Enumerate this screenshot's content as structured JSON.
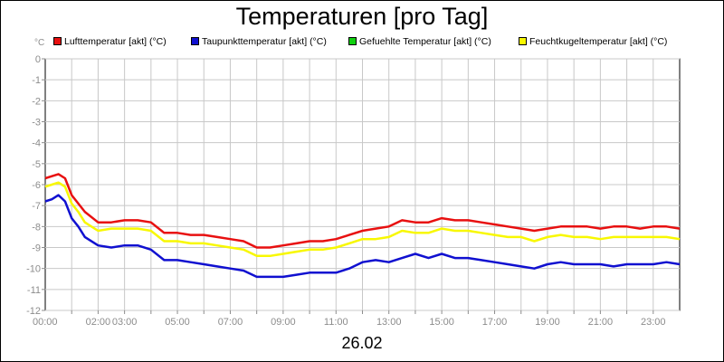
{
  "title": "Temperaturen [pro Tag]",
  "unit_label": "°C",
  "date_label": "26.02",
  "legend": [
    {
      "label": "Lufttemperatur [akt] (°C)",
      "color": "#e81010"
    },
    {
      "label": "Taupunkttemperatur [akt] (°C)",
      "color": "#1010d0"
    },
    {
      "label": "Gefuehlte Temperatur [akt] (°C)",
      "color": "#10d010"
    },
    {
      "label": "Feuchtkugeltemperatur [akt] (°C)",
      "color": "#f8f800"
    }
  ],
  "chart_data": {
    "type": "line",
    "title": "Temperaturen [pro Tag]",
    "xlabel": "26.02",
    "ylabel": "°C",
    "xlim": [
      0,
      24
    ],
    "ylim": [
      -12,
      0
    ],
    "y_ticks": [
      0,
      -1,
      -2,
      -3,
      -4,
      -5,
      -6,
      -7,
      -8,
      -9,
      -10,
      -11,
      -12
    ],
    "x_ticks": [
      {
        "t": 0,
        "label": "00:00"
      },
      {
        "t": 2,
        "label": "02:00"
      },
      {
        "t": 3,
        "label": "03:00"
      },
      {
        "t": 5,
        "label": "05:00"
      },
      {
        "t": 7,
        "label": "07:00"
      },
      {
        "t": 9,
        "label": "09:00"
      },
      {
        "t": 11,
        "label": "11:00"
      },
      {
        "t": 13,
        "label": "13:00"
      },
      {
        "t": 15,
        "label": "15:00"
      },
      {
        "t": 17,
        "label": "17:00"
      },
      {
        "t": 19,
        "label": "19:00"
      },
      {
        "t": 21,
        "label": "21:00"
      },
      {
        "t": 23,
        "label": "23:00"
      }
    ],
    "grid": true,
    "series": [
      {
        "name": "Lufttemperatur [akt] (°C)",
        "color": "#e81010",
        "x": [
          0,
          0.25,
          0.5,
          0.75,
          1.0,
          1.25,
          1.5,
          2.0,
          2.5,
          3.0,
          3.5,
          4.0,
          4.5,
          5.0,
          5.5,
          6.0,
          6.5,
          7.0,
          7.5,
          8.0,
          8.5,
          9.0,
          9.5,
          10.0,
          10.5,
          11.0,
          11.5,
          12.0,
          12.5,
          13.0,
          13.5,
          14.0,
          14.5,
          15.0,
          15.5,
          16.0,
          16.5,
          17.0,
          17.5,
          18.0,
          18.5,
          19.0,
          19.5,
          20.0,
          20.5,
          21.0,
          21.5,
          22.0,
          22.5,
          23.0,
          23.5,
          24.0
        ],
        "values": [
          -5.7,
          -5.6,
          -5.5,
          -5.7,
          -6.5,
          -6.9,
          -7.3,
          -7.8,
          -7.8,
          -7.7,
          -7.7,
          -7.8,
          -8.3,
          -8.3,
          -8.4,
          -8.4,
          -8.5,
          -8.6,
          -8.7,
          -9.0,
          -9.0,
          -8.9,
          -8.8,
          -8.7,
          -8.7,
          -8.6,
          -8.4,
          -8.2,
          -8.1,
          -8.0,
          -7.7,
          -7.8,
          -7.8,
          -7.6,
          -7.7,
          -7.7,
          -7.8,
          -7.9,
          -8.0,
          -8.1,
          -8.2,
          -8.1,
          -8.0,
          -8.0,
          -8.0,
          -8.1,
          -8.0,
          -8.0,
          -8.1,
          -8.0,
          -8.0,
          -8.1
        ]
      },
      {
        "name": "Taupunkttemperatur [akt] (°C)",
        "color": "#1010d0",
        "x": [
          0,
          0.25,
          0.5,
          0.75,
          1.0,
          1.25,
          1.5,
          2.0,
          2.5,
          3.0,
          3.5,
          4.0,
          4.5,
          5.0,
          5.5,
          6.0,
          6.5,
          7.0,
          7.5,
          8.0,
          8.5,
          9.0,
          9.5,
          10.0,
          10.5,
          11.0,
          11.5,
          12.0,
          12.5,
          13.0,
          13.5,
          14.0,
          14.5,
          15.0,
          15.5,
          16.0,
          16.5,
          17.0,
          17.5,
          18.0,
          18.5,
          19.0,
          19.5,
          20.0,
          20.5,
          21.0,
          21.5,
          22.0,
          22.5,
          23.0,
          23.5,
          24.0
        ],
        "values": [
          -6.8,
          -6.7,
          -6.5,
          -6.8,
          -7.6,
          -8.0,
          -8.5,
          -8.9,
          -9.0,
          -8.9,
          -8.9,
          -9.1,
          -9.6,
          -9.6,
          -9.7,
          -9.8,
          -9.9,
          -10.0,
          -10.1,
          -10.4,
          -10.4,
          -10.4,
          -10.3,
          -10.2,
          -10.2,
          -10.2,
          -10.0,
          -9.7,
          -9.6,
          -9.7,
          -9.5,
          -9.3,
          -9.5,
          -9.3,
          -9.5,
          -9.5,
          -9.6,
          -9.7,
          -9.8,
          -9.9,
          -10.0,
          -9.8,
          -9.7,
          -9.8,
          -9.8,
          -9.8,
          -9.9,
          -9.8,
          -9.8,
          -9.8,
          -9.7,
          -9.8
        ]
      },
      {
        "name": "Feuchtkugeltemperatur [akt] (°C)",
        "color": "#f8f800",
        "x": [
          0,
          0.25,
          0.5,
          0.75,
          1.0,
          1.25,
          1.5,
          2.0,
          2.5,
          3.0,
          3.5,
          4.0,
          4.5,
          5.0,
          5.5,
          6.0,
          6.5,
          7.0,
          7.5,
          8.0,
          8.5,
          9.0,
          9.5,
          10.0,
          10.5,
          11.0,
          11.5,
          12.0,
          12.5,
          13.0,
          13.5,
          14.0,
          14.5,
          15.0,
          15.5,
          16.0,
          16.5,
          17.0,
          17.5,
          18.0,
          18.5,
          19.0,
          19.5,
          20.0,
          20.5,
          21.0,
          21.5,
          22.0,
          22.5,
          23.0,
          23.5,
          24.0
        ],
        "values": [
          -6.1,
          -6.0,
          -5.9,
          -6.1,
          -6.9,
          -7.3,
          -7.8,
          -8.2,
          -8.1,
          -8.1,
          -8.1,
          -8.2,
          -8.7,
          -8.7,
          -8.8,
          -8.8,
          -8.9,
          -9.0,
          -9.1,
          -9.4,
          -9.4,
          -9.3,
          -9.2,
          -9.1,
          -9.1,
          -9.0,
          -8.8,
          -8.6,
          -8.6,
          -8.5,
          -8.2,
          -8.3,
          -8.3,
          -8.1,
          -8.2,
          -8.2,
          -8.3,
          -8.4,
          -8.5,
          -8.5,
          -8.7,
          -8.5,
          -8.4,
          -8.5,
          -8.5,
          -8.6,
          -8.5,
          -8.5,
          -8.5,
          -8.5,
          -8.5,
          -8.6
        ]
      }
    ]
  }
}
